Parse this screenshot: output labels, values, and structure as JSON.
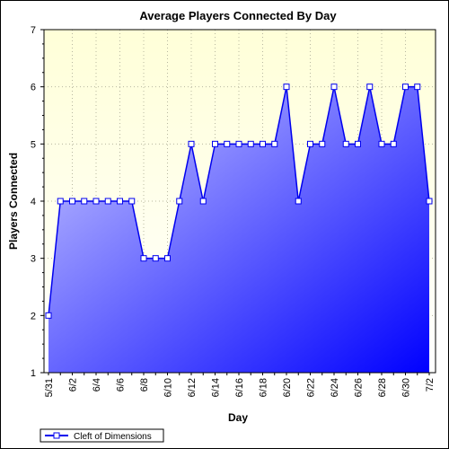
{
  "chart_data": {
    "type": "area",
    "title": "Average Players Connected By Day",
    "xlabel": "Day",
    "ylabel": "Players Connected",
    "ylim": [
      1,
      7
    ],
    "yticks": [
      "1",
      "2",
      "3",
      "4",
      "5",
      "6",
      "7"
    ],
    "x": [
      "5/31",
      "6/1",
      "6/2",
      "6/3",
      "6/4",
      "6/5",
      "6/6",
      "6/7",
      "6/8",
      "6/9",
      "6/10",
      "6/11",
      "6/12",
      "6/13",
      "6/14",
      "6/15",
      "6/16",
      "6/17",
      "6/18",
      "6/19",
      "6/20",
      "6/21",
      "6/22",
      "6/23",
      "6/24",
      "6/25",
      "6/26",
      "6/27",
      "6/28",
      "6/29",
      "6/30",
      "7/1",
      "7/2"
    ],
    "xtick_labels": [
      "5/31",
      "6/2",
      "6/4",
      "6/6",
      "6/8",
      "6/10",
      "6/12",
      "6/14",
      "6/16",
      "6/18",
      "6/20",
      "6/22",
      "6/24",
      "6/26",
      "6/28",
      "6/30",
      "7/2"
    ],
    "series": [
      {
        "name": "Cleft of Dimensions",
        "values": [
          2,
          4,
          4,
          4,
          4,
          4,
          4,
          4,
          3,
          3,
          3,
          4,
          5,
          4,
          5,
          5,
          5,
          5,
          5,
          5,
          6,
          4,
          5,
          5,
          6,
          5,
          5,
          6,
          5,
          5,
          6,
          6,
          4
        ]
      }
    ],
    "grid": true,
    "legend_position": "bottom-left",
    "colors": {
      "plot_background_top": "#ffffd8",
      "plot_background_bottom": "#ffffff",
      "area_light": "#ccccff",
      "area_dark": "#0000ff",
      "line": "#0000ee",
      "marker_fill": "#ffffff",
      "grid": "#b8b8a0"
    }
  }
}
